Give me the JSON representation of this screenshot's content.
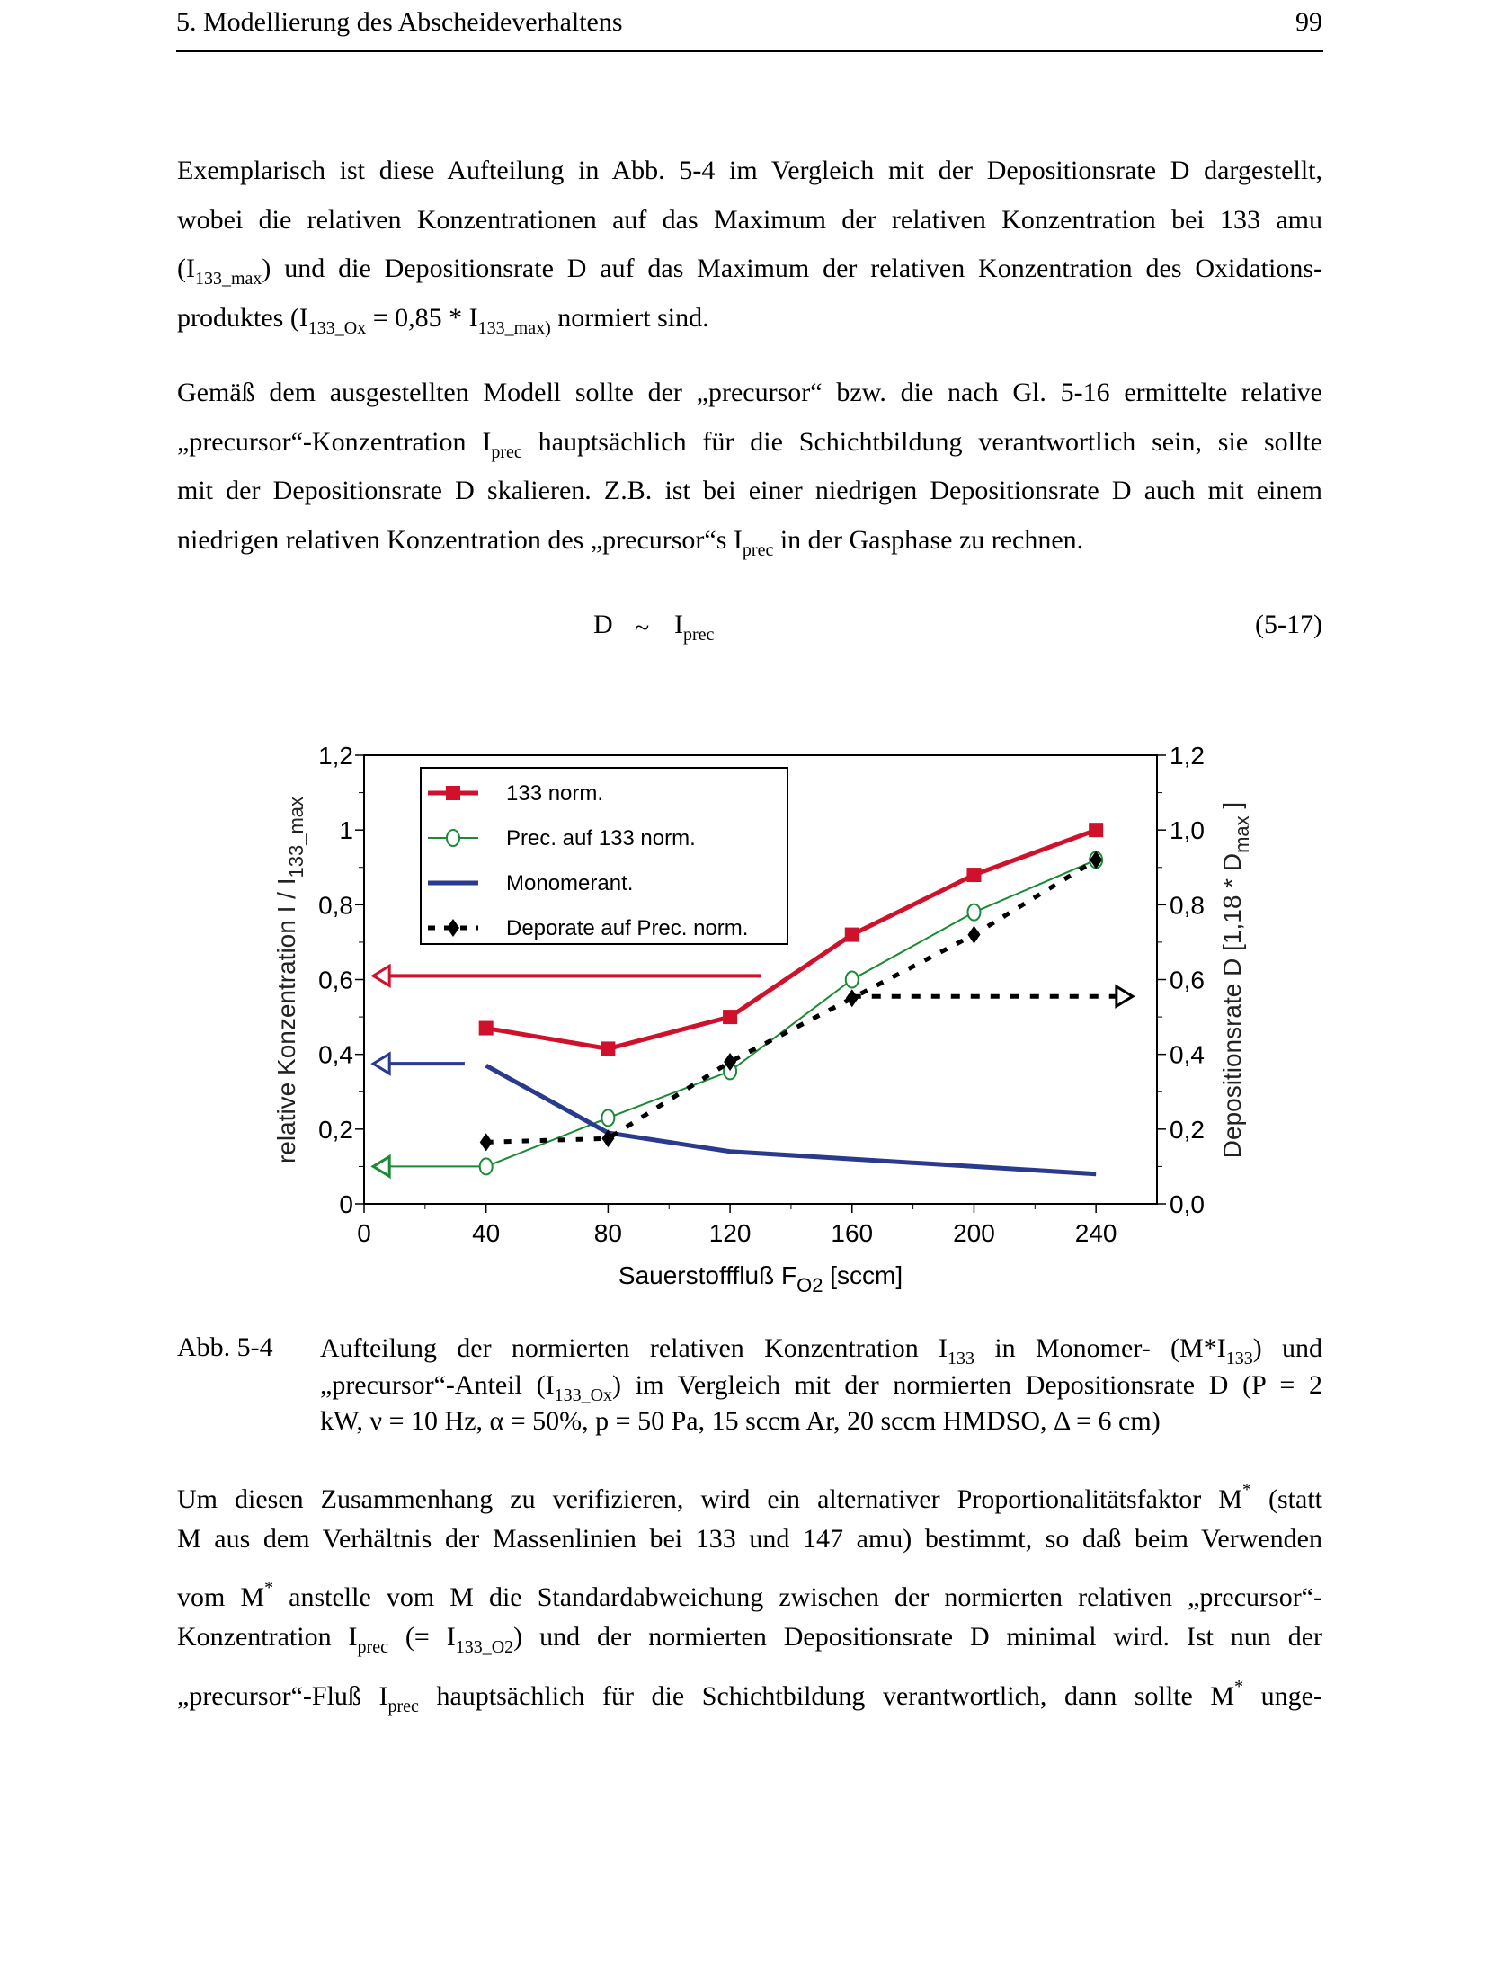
{
  "header": {
    "chapter": "5.  Modellierung des Abscheideverhaltens",
    "page_number": "99"
  },
  "paragraphs": {
    "p1": [
      [
        {
          "t": "Exemplarisch ist diese Aufteilung in Abb. 5-4 im Vergleich mit der Depositionsrate D dargestellt,"
        }
      ],
      [
        {
          "t": "wobei die relativen Konzentrationen auf das Maximum der relativen Konzentration bei 133 amu"
        }
      ],
      [
        {
          "t": "(I"
        },
        {
          "t": "133_max",
          "s": "sub"
        },
        {
          "t": ") und die Depositionsrate D auf das Maximum der relativen Konzentration des Oxidations-"
        }
      ],
      [
        {
          "t": "produktes (I"
        },
        {
          "t": "133_Ox",
          "s": "sub"
        },
        {
          "t": " = 0,85 * I"
        },
        {
          "t": "133_max)",
          "s": "sub"
        },
        {
          "t": " normiert sind."
        }
      ]
    ],
    "p2": [
      [
        {
          "t": "Gemäß dem ausgestellten Modell sollte der „precursor“ bzw. die nach Gl. 5-16 ermittelte relative"
        }
      ],
      [
        {
          "t": "„precursor“-Konzentration I"
        },
        {
          "t": "prec",
          "s": "sub"
        },
        {
          "t": " hauptsächlich für die Schichtbildung verantwortlich sein, sie sollte"
        }
      ],
      [
        {
          "t": "mit der Depositionsrate D skalieren. Z.B. ist bei einer niedrigen Depositionsrate D auch mit einem"
        }
      ],
      [
        {
          "t": "niedrigen relativen Konzentration des „precursor“s I"
        },
        {
          "t": "prec",
          "s": "sub"
        },
        {
          "t": " in der Gasphase zu rechnen."
        }
      ]
    ],
    "caption": [
      [
        {
          "t": "Aufteilung der normierten relativen Konzentration I"
        },
        {
          "t": "133",
          "s": "sub"
        },
        {
          "t": " in Monomer- (M*I"
        },
        {
          "t": "133",
          "s": "sub"
        },
        {
          "t": ") und"
        }
      ],
      [
        {
          "t": "„precursor“-Anteil (I"
        },
        {
          "t": "133_Ox",
          "s": "sub"
        },
        {
          "t": ") im Vergleich mit der normierten Depositionsrate D (P = 2"
        }
      ],
      [
        {
          "t": "kW, ν = 10 Hz, α = 50%, p = 50 Pa, 15 sccm Ar, 20 sccm HMDSO, Δ = 6 cm)"
        }
      ]
    ],
    "p3": [
      [
        {
          "t": "Um diesen Zusammenhang zu verifizieren, wird ein alternativer Proportionalitätsfaktor M"
        },
        {
          "t": "*",
          "s": "sup"
        },
        {
          "t": " (statt"
        }
      ],
      [
        {
          "t": "M aus dem Verhältnis der Massenlinien bei 133 und 147 amu) bestimmt, so daß beim Verwenden"
        }
      ],
      [
        {
          "t": "vom M"
        },
        {
          "t": "*",
          "s": "sup"
        },
        {
          "t": " anstelle vom M die Standardabweichung zwischen der normierten relativen „precursor“-"
        }
      ],
      [
        {
          "t": "Konzentration I"
        },
        {
          "t": "prec",
          "s": "sub"
        },
        {
          "t": " (= I"
        },
        {
          "t": "133_O2",
          "s": "sub"
        },
        {
          "t": ") und der normierten Depositionsrate D minimal wird. Ist nun der"
        }
      ],
      [
        {
          "t": "„precursor“-Fluß I"
        },
        {
          "t": "prec",
          "s": "sub"
        },
        {
          "t": " hauptsächlich für die Schichtbildung verantwortlich, dann sollte M"
        },
        {
          "t": "*",
          "s": "sup"
        },
        {
          "t": " unge-"
        }
      ]
    ]
  },
  "equation": {
    "lhs": "D",
    "op": "~",
    "rhs": "I",
    "rhs_sub": "prec",
    "number": "(5-17)"
  },
  "caption_label": "Abb. 5-4",
  "chart_data": {
    "type": "line",
    "x": [
      40,
      80,
      120,
      160,
      200,
      240
    ],
    "xlim": [
      0,
      260
    ],
    "ylim": [
      0,
      1.2
    ],
    "y2lim": [
      0,
      1.2
    ],
    "x_ticks": [
      "0",
      "40",
      "80",
      "120",
      "160",
      "200",
      "240"
    ],
    "y_ticks": [
      "0",
      "0,2",
      "0,4",
      "0,6",
      "0,8",
      "1",
      "1,2"
    ],
    "y2_ticks": [
      "0,0",
      "0,2",
      "0,4",
      "0,6",
      "0,8",
      "1,0",
      "1,2"
    ],
    "xlabel": "Sauerstofffluß F",
    "xlabel_sub": "O2",
    "xlabel_unit": " [sccm]",
    "ylabel": "relative Konzentration I / I",
    "ylabel_sub": "133_max",
    "y2label": "Depositionsrate D [1,18 * D",
    "y2label_sub": "max",
    "y2label_end": " ]",
    "legend_position": "top-left",
    "series": [
      {
        "name": "133 norm.",
        "color": "#d0112b",
        "marker": "square",
        "style": "solid",
        "values": [
          0.47,
          0.415,
          0.5,
          0.72,
          0.88,
          1.0
        ]
      },
      {
        "name": "Prec. auf 133 norm.",
        "color": "#1a8a35",
        "marker": "open-circle",
        "style": "solid-thin",
        "values": [
          0.1,
          0.23,
          0.355,
          0.6,
          0.78,
          0.92
        ]
      },
      {
        "name": "Monomerant.",
        "color": "#2a3a8c",
        "marker": "none",
        "style": "solid",
        "values": [
          0.37,
          0.19,
          0.14,
          0.12,
          0.1,
          0.08
        ]
      },
      {
        "name": "Deporate auf Prec. norm.",
        "color": "#000000",
        "marker": "diamond",
        "style": "dashed",
        "values": [
          0.165,
          0.175,
          0.38,
          0.55,
          0.72,
          0.92
        ]
      }
    ],
    "axis_arrows": [
      {
        "series": "133 norm.",
        "y": 0.61,
        "from_x": 130,
        "to_x": 3,
        "direction": "left",
        "color": "#d0112b"
      },
      {
        "series": "Monomerant.",
        "y": 0.375,
        "from_x": 33,
        "to_x": 3,
        "direction": "left",
        "color": "#2a3a8c"
      },
      {
        "series": "Prec. auf 133 norm.",
        "y": 0.1,
        "from_x": 38,
        "to_x": 3,
        "direction": "left",
        "color": "#1a8a35"
      },
      {
        "series": "Deporate auf Prec. norm.",
        "y": 0.555,
        "from_x": 160,
        "to_x": 252,
        "direction": "right",
        "color": "#000000"
      }
    ]
  }
}
